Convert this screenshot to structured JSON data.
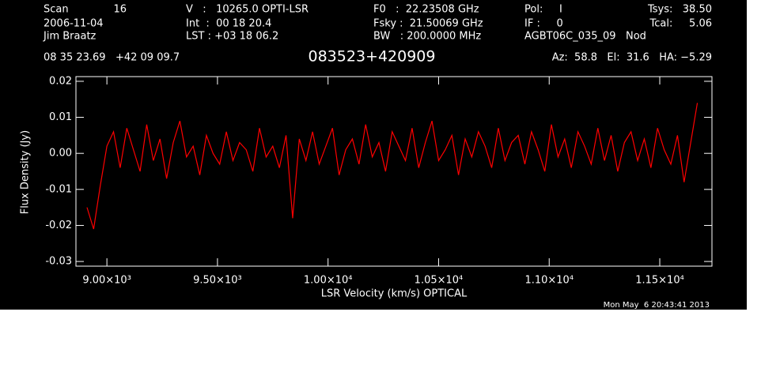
{
  "header": {
    "lines": [
      "Scan",
      "16",
      "2006-11-04",
      "Jim Braatz",
      "V   :   10265.0 OPTI-LSR",
      "Int  :  00 18 20.4",
      "LST : +03 18 06.2",
      "F0   :  22.23508 GHz",
      "Fsky :  21.50069 GHz",
      "BW   : 200.0000 MHz",
      "Pol:     I",
      "IF :     0",
      "AGBT06C_035_09   Nod",
      "Tsys:   38.50",
      "Tcal:     5.06",
      "08 35 23.69   +42 09 09.7",
      "Az:  58.8   El:  31.6   HA: −5.29",
      "Mon May  6 20:43:41 2013"
    ]
  },
  "chart_data": {
    "type": "line",
    "title": "083523+420909",
    "x_label": "LSR Velocity (km/s) OPTICAL",
    "y_label": "Flux Density (Jy)",
    "color": "#ff0000",
    "x": [
      8910,
      8940,
      8970,
      9000,
      9030,
      9060,
      9090,
      9120,
      9150,
      9180,
      9210,
      9240,
      9270,
      9300,
      9330,
      9360,
      9390,
      9420,
      9450,
      9480,
      9510,
      9540,
      9570,
      9600,
      9630,
      9660,
      9690,
      9720,
      9750,
      9780,
      9810,
      9840,
      9870,
      9900,
      9930,
      9960,
      9990,
      10020,
      10050,
      10080,
      10110,
      10140,
      10170,
      10200,
      10230,
      10260,
      10290,
      10320,
      10350,
      10380,
      10410,
      10440,
      10470,
      10500,
      10530,
      10560,
      10590,
      10620,
      10650,
      10680,
      10710,
      10740,
      10770,
      10800,
      10830,
      10860,
      10890,
      10920,
      10950,
      10980,
      11010,
      11040,
      11070,
      11100,
      11130,
      11160,
      11190,
      11220,
      11250,
      11280,
      11310,
      11340,
      11370,
      11400,
      11430,
      11460,
      11490,
      11520,
      11550,
      11580,
      11610,
      11640,
      11670
    ],
    "values": [
      -0.015,
      -0.021,
      -0.009,
      0.002,
      0.006,
      -0.004,
      0.007,
      0.001,
      -0.005,
      0.008,
      -0.002,
      0.004,
      -0.007,
      0.003,
      0.009,
      -0.001,
      0.002,
      -0.006,
      0.005,
      0.0,
      -0.003,
      0.006,
      -0.002,
      0.003,
      0.001,
      -0.005,
      0.007,
      -0.001,
      0.002,
      -0.004,
      0.005,
      -0.018,
      0.004,
      -0.002,
      0.006,
      -0.003,
      0.002,
      0.007,
      -0.006,
      0.001,
      0.004,
      -0.003,
      0.008,
      -0.001,
      0.003,
      -0.005,
      0.006,
      0.002,
      -0.002,
      0.007,
      -0.004,
      0.003,
      0.009,
      -0.002,
      0.001,
      0.005,
      -0.006,
      0.004,
      -0.001,
      0.006,
      0.002,
      -0.004,
      0.007,
      -0.002,
      0.003,
      0.005,
      -0.003,
      0.006,
      0.001,
      -0.005,
      0.008,
      -0.001,
      0.004,
      -0.004,
      0.006,
      0.002,
      -0.003,
      0.007,
      -0.002,
      0.005,
      -0.005,
      0.003,
      0.006,
      -0.002,
      0.004,
      -0.004,
      0.007,
      0.001,
      -0.003,
      0.005,
      -0.008,
      0.003,
      0.014
    ],
    "xlim": [
      8860,
      11736
    ],
    "ylim": [
      -0.0313,
      0.0213
    ],
    "xticks": [
      {
        "value": 9000,
        "label": "9.00×10³"
      },
      {
        "value": 9500,
        "label": "9.50×10³"
      },
      {
        "value": 10000,
        "label": "1.00×10⁴"
      },
      {
        "value": 10500,
        "label": "1.05×10⁴"
      },
      {
        "value": 11000,
        "label": "1.10×10⁴"
      },
      {
        "value": 11500,
        "label": "1.15×10⁴"
      }
    ],
    "yticks": [
      -0.03,
      -0.02,
      -0.01,
      {
        "value": 0,
        "label": "0.00"
      },
      0.01,
      0.02
    ]
  }
}
